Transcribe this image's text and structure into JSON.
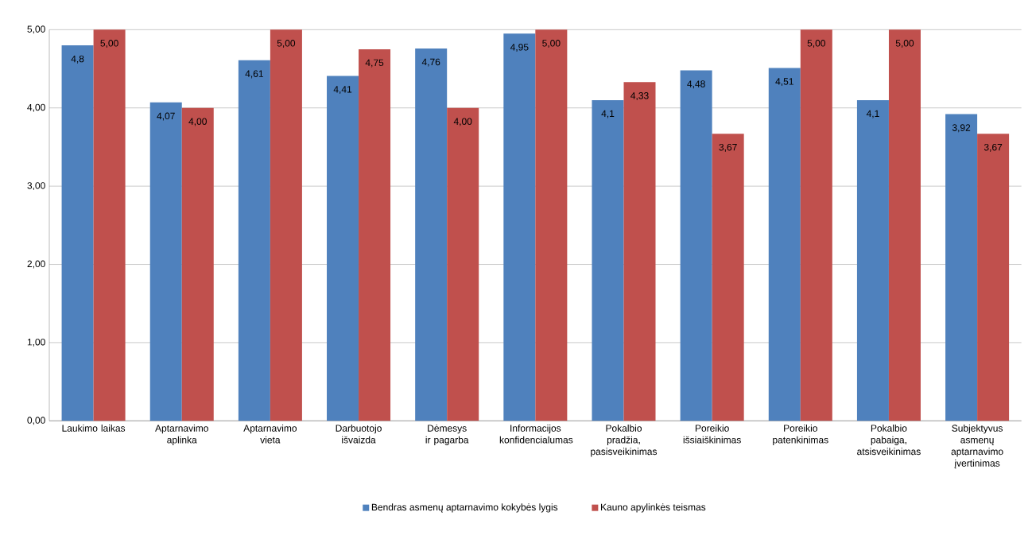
{
  "chart_data": {
    "type": "bar",
    "categories": [
      "Laukimo laikas",
      "Aptarnavimo aplinka",
      "Aptarnavimo vieta",
      "Darbuotojo išvaizda",
      "Dėmesys ir pagarba",
      "Informacijos konfidencialumas",
      "Pokalbio pradžia, pasisveikinimas",
      "Poreikio išsiaiškinimas",
      "Poreikio patenkinimas",
      "Pokalbio pabaiga, atsisveikinimas",
      "Subjektyvus asmenų aptarnavimo įvertinimas"
    ],
    "series": [
      {
        "name": "Bendras asmenų aptarnavimo kokybės lygis",
        "color": "#4f81bd",
        "values": [
          4.8,
          4.07,
          4.61,
          4.41,
          4.76,
          4.95,
          4.1,
          4.48,
          4.51,
          4.1,
          3.92
        ],
        "value_labels": [
          "4,8",
          "4,07",
          "4,61",
          "4,41",
          "4,76",
          "4,95",
          "4,1",
          "4,48",
          "4,51",
          "4,1",
          "3,92"
        ]
      },
      {
        "name": "Kauno apylinkės teismas",
        "color": "#c0504d",
        "values": [
          5.0,
          4.0,
          5.0,
          4.75,
          4.0,
          5.0,
          4.33,
          3.67,
          5.0,
          5.0,
          3.67
        ],
        "value_labels": [
          "5,00",
          "4,00",
          "5,00",
          "4,75",
          "4,00",
          "5,00",
          "4,33",
          "3,67",
          "5,00",
          "5,00",
          "3,67"
        ]
      }
    ],
    "ylim": [
      0,
      5
    ],
    "yticks": [
      {
        "value": 0,
        "label": "0,00"
      },
      {
        "value": 1,
        "label": "1,00"
      },
      {
        "value": 2,
        "label": "2,00"
      },
      {
        "value": 3,
        "label": "3,00"
      },
      {
        "value": 4,
        "label": "4,00"
      },
      {
        "value": 5,
        "label": "5,00"
      }
    ],
    "grid": "y",
    "legend": "bottom"
  }
}
